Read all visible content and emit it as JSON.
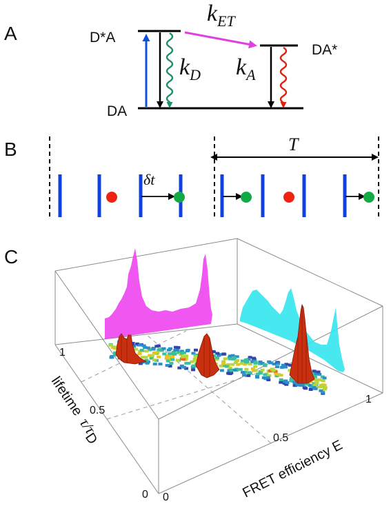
{
  "panels": {
    "a": "A",
    "b": "B",
    "c": "C"
  },
  "energy": {
    "donor_excited": "D*A",
    "ground": "DA",
    "acceptor_excited": "DA*",
    "k_et_main": "k",
    "k_et_sub": "ET",
    "k_d_main": "k",
    "k_d_sub": "D",
    "k_a_main": "k",
    "k_a_sub": "A"
  },
  "pulses": {
    "delta_t": "δt",
    "period": "T"
  },
  "plot3d": {
    "x_label": "FRET efficiency E",
    "y_label_word": "lifetime",
    "y_label_tau": "τ/τ",
    "y_label_sub": "D",
    "x_ticks": [
      "0",
      "0.5",
      "1"
    ],
    "y_ticks": [
      "1",
      "0.5",
      "0"
    ]
  },
  "colors": {
    "excitation": "#1050e0",
    "energy_transfer": "#e040e0",
    "donor_emission": "#20906a",
    "acceptor_emission": "#e02010",
    "pulse_bar": "#1040e0",
    "dot_red": "#ee2211",
    "dot_green": "#11aa44",
    "proj_magenta": "#ee44ee",
    "proj_cyan": "#33e6ee",
    "peak": "#c83010"
  }
}
